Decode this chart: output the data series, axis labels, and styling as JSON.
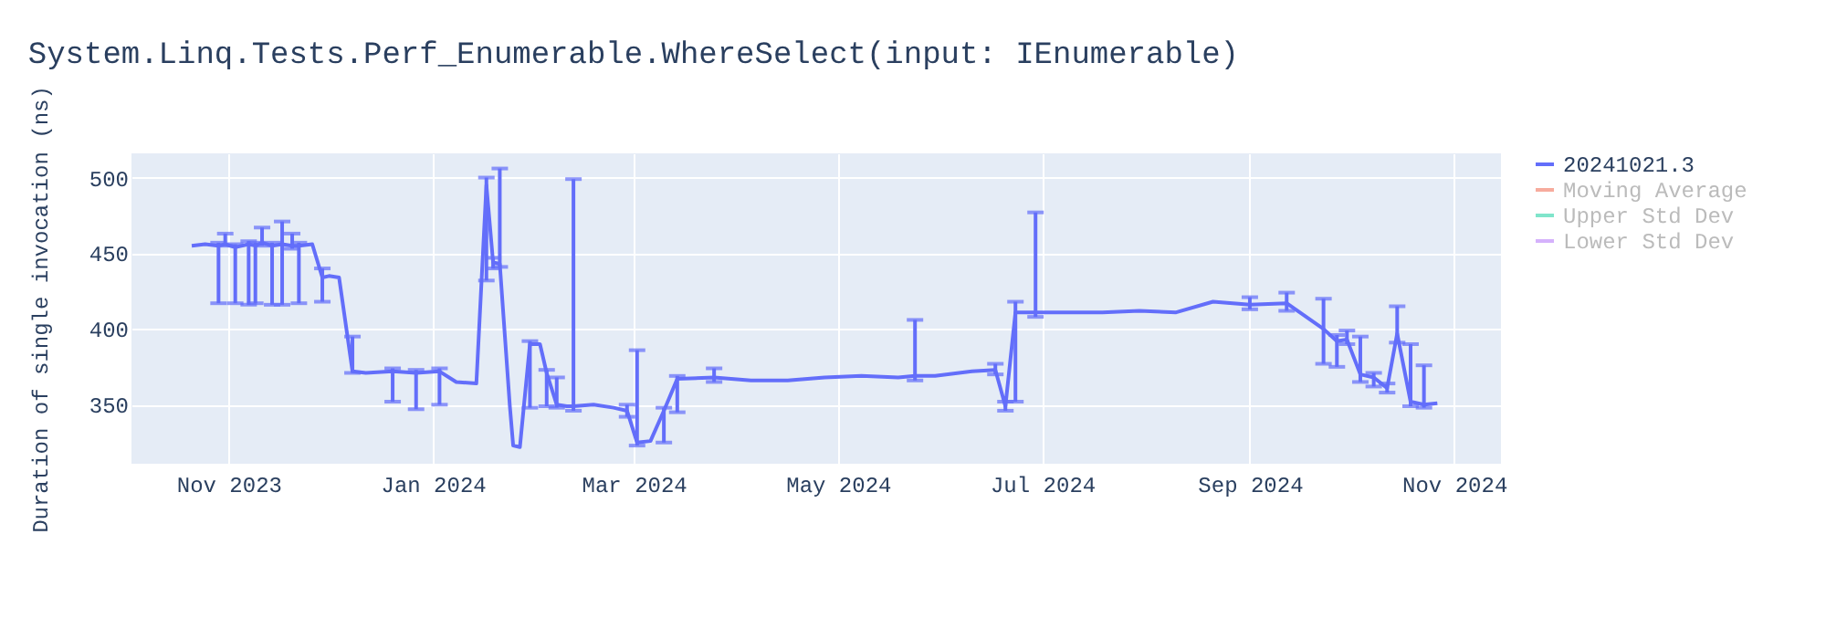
{
  "chart_data": {
    "type": "line",
    "title": "System.Linq.Tests.Perf_Enumerable.WhereSelect(input: IEnumerable)",
    "ylabel": "Duration of single invocation (ns)",
    "x": [
      "2023-10-21",
      "2023-10-25",
      "2023-10-29",
      "2023-10-31",
      "2023-11-03",
      "2023-11-07",
      "2023-11-09",
      "2023-11-11",
      "2023-11-14",
      "2023-11-17",
      "2023-11-20",
      "2023-11-22",
      "2023-11-26",
      "2023-11-29",
      "2023-12-01",
      "2023-12-04",
      "2023-12-08",
      "2023-12-12",
      "2023-12-20",
      "2023-12-27",
      "2024-01-03",
      "2024-01-08",
      "2024-01-14",
      "2024-01-17",
      "2024-01-19",
      "2024-01-21",
      "2024-01-24",
      "2024-01-25",
      "2024-01-27",
      "2024-01-30",
      "2024-02-02",
      "2024-02-04",
      "2024-02-07",
      "2024-02-10",
      "2024-02-12",
      "2024-02-18",
      "2024-02-24",
      "2024-02-28",
      "2024-03-02",
      "2024-03-06",
      "2024-03-10",
      "2024-03-14",
      "2024-03-25",
      "2024-04-05",
      "2024-04-16",
      "2024-04-27",
      "2024-05-08",
      "2024-05-19",
      "2024-05-24",
      "2024-05-30",
      "2024-06-10",
      "2024-06-17",
      "2024-06-20",
      "2024-06-23",
      "2024-06-29",
      "2024-07-08",
      "2024-07-19",
      "2024-07-30",
      "2024-08-10",
      "2024-08-21",
      "2024-09-01",
      "2024-09-12",
      "2024-09-23",
      "2024-09-27",
      "2024-09-30",
      "2024-10-04",
      "2024-10-08",
      "2024-10-12",
      "2024-10-15",
      "2024-10-19",
      "2024-10-23",
      "2024-10-27"
    ],
    "series": [
      {
        "name": "20241021.3",
        "color": "#636efa",
        "values": [
          455,
          456,
          455,
          456,
          454,
          456,
          455,
          457,
          455,
          456,
          455,
          455,
          456,
          434,
          435,
          434,
          372,
          371,
          372,
          371,
          372,
          365,
          364,
          495,
          444,
          443,
          349,
          323,
          322,
          390,
          390,
          371,
          350,
          349,
          349,
          350,
          348,
          346,
          325,
          326,
          346,
          367,
          368,
          366,
          366,
          368,
          369,
          368,
          369,
          369,
          372,
          373,
          349,
          411,
          411,
          411,
          411,
          412,
          411,
          418,
          416,
          417,
          400,
          392,
          393,
          370,
          368,
          361,
          397,
          352,
          350,
          351
        ],
        "errors": [
          null,
          null,
          [
            417,
            457
          ],
          [
            455,
            463
          ],
          [
            417,
            456
          ],
          [
            416,
            458
          ],
          [
            417,
            457
          ],
          [
            455,
            467
          ],
          [
            416,
            457
          ],
          [
            416,
            471
          ],
          [
            453,
            463
          ],
          [
            417,
            457
          ],
          null,
          [
            418,
            440
          ],
          null,
          null,
          [
            371,
            395
          ],
          null,
          [
            352,
            374
          ],
          [
            347,
            373
          ],
          [
            350,
            374
          ],
          null,
          null,
          [
            432,
            500
          ],
          [
            440,
            447
          ],
          [
            441,
            506
          ],
          null,
          null,
          null,
          [
            348,
            392
          ],
          null,
          [
            349,
            373
          ],
          [
            348,
            368
          ],
          null,
          [
            346,
            499
          ],
          null,
          null,
          [
            342,
            350
          ],
          [
            323,
            386
          ],
          null,
          [
            325,
            348
          ],
          [
            345,
            369
          ],
          [
            365,
            374
          ],
          null,
          null,
          null,
          null,
          null,
          [
            366,
            406
          ],
          null,
          null,
          [
            370,
            377
          ],
          [
            346,
            352
          ],
          [
            352,
            418
          ],
          [
            408,
            477
          ],
          null,
          null,
          null,
          null,
          null,
          [
            413,
            421
          ],
          [
            412,
            424
          ],
          [
            377,
            420
          ],
          [
            375,
            396
          ],
          [
            390,
            399
          ],
          [
            365,
            395
          ],
          [
            362,
            371
          ],
          [
            358,
            364
          ],
          [
            391,
            415
          ],
          [
            349,
            390
          ],
          [
            348,
            376
          ],
          null
        ]
      },
      {
        "name": "Moving Average",
        "color": "#f7ab9d",
        "values": [
          null,
          null,
          null,
          null,
          null,
          null,
          null,
          null,
          null,
          null,
          null,
          null,
          null,
          null,
          null,
          null,
          null,
          null,
          null,
          null,
          null,
          null,
          null,
          null,
          null,
          null,
          null,
          null,
          null,
          null,
          null,
          null,
          null,
          null,
          null,
          null,
          null,
          null,
          null,
          null,
          null,
          null,
          null,
          null,
          null,
          null,
          null,
          null,
          null,
          null,
          null,
          null,
          null,
          null,
          null,
          null,
          null,
          null,
          null,
          null,
          null,
          null,
          null,
          null,
          null,
          null,
          null,
          null,
          null,
          null,
          null,
          null
        ]
      },
      {
        "name": "Upper Std Dev",
        "color": "#80e5cb",
        "values": [
          null,
          null,
          null,
          null,
          null,
          null,
          null,
          null,
          null,
          null,
          null,
          null,
          null,
          null,
          null,
          null,
          null,
          null,
          null,
          null,
          null,
          null,
          null,
          null,
          null,
          null,
          null,
          null,
          null,
          null,
          null,
          null,
          null,
          null,
          null,
          null,
          null,
          null,
          null,
          null,
          null,
          null,
          null,
          null,
          null,
          null,
          null,
          null,
          null,
          null,
          null,
          null,
          null,
          null,
          null,
          null,
          null,
          null,
          null,
          null,
          null,
          null,
          null,
          null,
          null,
          null,
          null,
          null,
          null,
          null,
          null,
          null
        ]
      },
      {
        "name": "Lower Std Dev",
        "color": "#d5b1fc",
        "values": [
          null,
          null,
          null,
          null,
          null,
          null,
          null,
          null,
          null,
          null,
          null,
          null,
          null,
          null,
          null,
          null,
          null,
          null,
          null,
          null,
          null,
          null,
          null,
          null,
          null,
          null,
          null,
          null,
          null,
          null,
          null,
          null,
          null,
          null,
          null,
          null,
          null,
          null,
          null,
          null,
          null,
          null,
          null,
          null,
          null,
          null,
          null,
          null,
          null,
          null,
          null,
          null,
          null,
          null,
          null,
          null,
          null,
          null,
          null,
          null,
          null,
          null,
          null,
          null,
          null,
          null,
          null,
          null,
          null,
          null,
          null,
          null
        ]
      }
    ],
    "xlim": [
      "2023-10-03",
      "2024-11-15"
    ],
    "xticks": [
      {
        "value": "2023-11-01",
        "label": "Nov 2023"
      },
      {
        "value": "2024-01-01",
        "label": "Jan 2024"
      },
      {
        "value": "2024-03-01",
        "label": "Mar 2024"
      },
      {
        "value": "2024-05-01",
        "label": "May 2024"
      },
      {
        "value": "2024-07-01",
        "label": "Jul 2024"
      },
      {
        "value": "2024-09-01",
        "label": "Sep 2024"
      },
      {
        "value": "2024-11-01",
        "label": "Nov 2024"
      }
    ],
    "ylim": [
      311,
      516
    ],
    "yticks": [
      350,
      400,
      450,
      500
    ],
    "grid": true,
    "legend": "top right",
    "marker": "none",
    "line_style": "solid"
  }
}
